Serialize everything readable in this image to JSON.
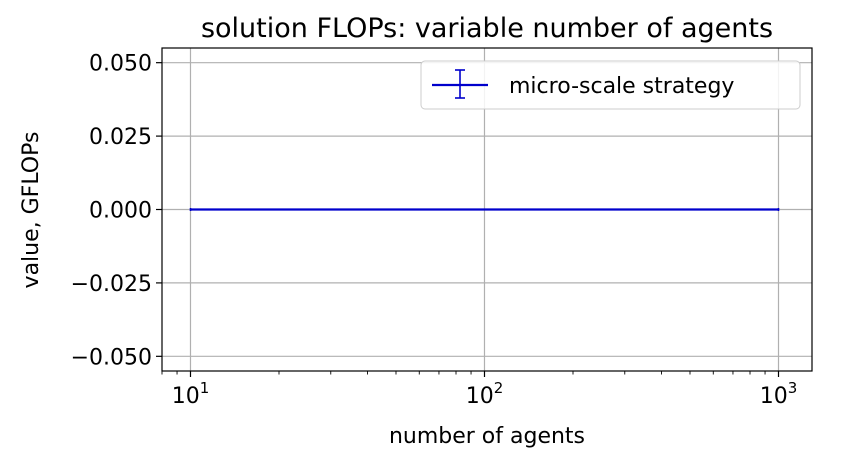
{
  "chart_data": {
    "type": "line",
    "title": "solution FLOPs: variable number of agents",
    "xlabel": "number of agents",
    "ylabel": "value, GFLOPs",
    "xscale": "log",
    "xlim": [
      8,
      1300
    ],
    "ylim": [
      -0.055,
      0.055
    ],
    "x_ticks": [
      {
        "value": 10,
        "base": "10",
        "exp": "1"
      },
      {
        "value": 100,
        "base": "10",
        "exp": "2"
      },
      {
        "value": 1000,
        "base": "10",
        "exp": "3"
      }
    ],
    "y_ticks": [
      {
        "value": 0.05,
        "label": "0.050"
      },
      {
        "value": 0.025,
        "label": "0.025"
      },
      {
        "value": 0.0,
        "label": "0.000"
      },
      {
        "value": -0.025,
        "label": "−0.025"
      },
      {
        "value": -0.05,
        "label": "−0.050"
      }
    ],
    "grid": true,
    "legend_position": "top-right",
    "series": [
      {
        "name": "micro-scale strategy",
        "color": "#0000cc",
        "errorbars": true,
        "x": [
          10,
          1000
        ],
        "y": [
          0,
          0
        ]
      }
    ]
  }
}
